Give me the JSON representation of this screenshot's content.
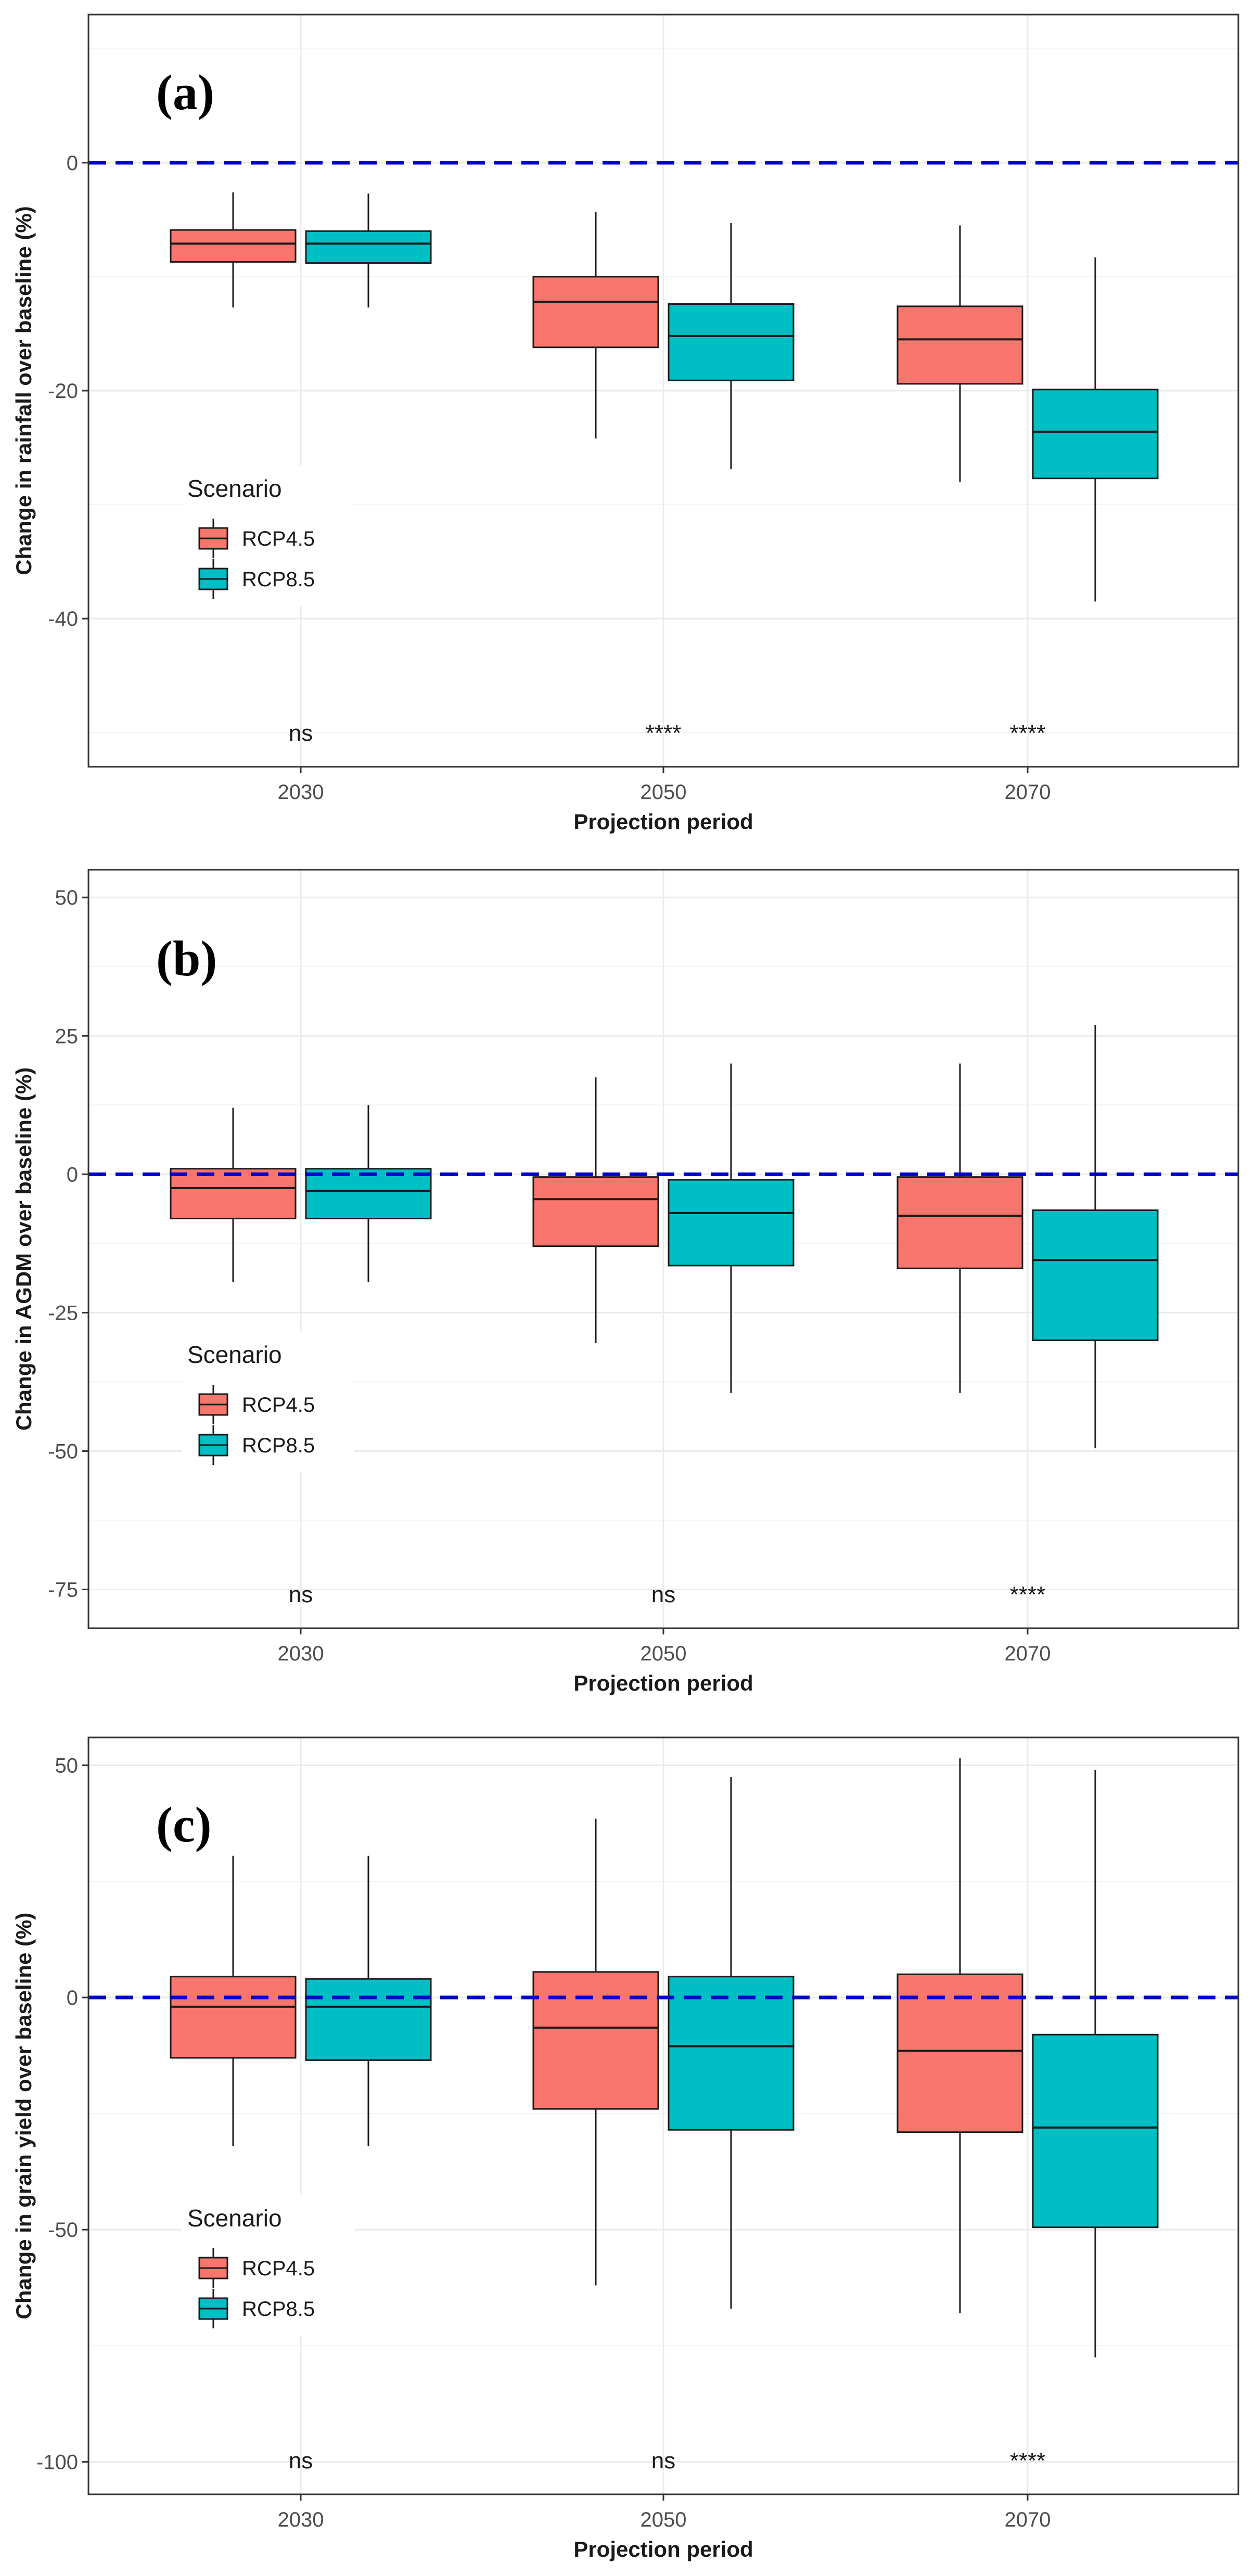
{
  "chart_data": [
    {
      "type": "box",
      "panel_label": "(a)",
      "xlabel": "Projection period",
      "ylabel": "Change in rainfall over baseline (%)",
      "categories": [
        "2030",
        "2050",
        "2070"
      ],
      "ylim": [
        -53,
        13
      ],
      "yticks": [
        0,
        -20,
        -40
      ],
      "reference_line": 0,
      "legend": {
        "title": "Scenario",
        "entries": [
          "RCP4.5",
          "RCP8.5"
        ],
        "position": "left"
      },
      "series": [
        {
          "name": "RCP4.5",
          "color": "#F8766D",
          "boxes": [
            {
              "min": -12.7,
              "q1": -8.7,
              "median": -7.1,
              "q3": -5.9,
              "max": -2.6
            },
            {
              "min": -24.2,
              "q1": -16.2,
              "median": -12.2,
              "q3": -10.0,
              "max": -4.3
            },
            {
              "min": -28.0,
              "q1": -19.4,
              "median": -15.5,
              "q3": -12.6,
              "max": -5.5
            }
          ]
        },
        {
          "name": "RCP8.5",
          "color": "#00BFC4",
          "boxes": [
            {
              "min": -12.7,
              "q1": -8.8,
              "median": -7.1,
              "q3": -6.0,
              "max": -2.7
            },
            {
              "min": -26.9,
              "q1": -19.1,
              "median": -15.2,
              "q3": -12.4,
              "max": -5.3
            },
            {
              "min": -38.5,
              "q1": -27.7,
              "median": -23.6,
              "q3": -19.9,
              "max": -8.3
            }
          ]
        }
      ],
      "significance": [
        "ns",
        "****",
        "****"
      ]
    },
    {
      "type": "box",
      "panel_label": "(b)",
      "xlabel": "Projection period",
      "ylabel": "Change in AGDM over baseline (%)",
      "categories": [
        "2030",
        "2050",
        "2070"
      ],
      "ylim": [
        -82,
        55
      ],
      "yticks": [
        50,
        25,
        0,
        -25,
        -50,
        -75
      ],
      "reference_line": 0,
      "legend": {
        "title": "Scenario",
        "entries": [
          "RCP4.5",
          "RCP8.5"
        ],
        "position": "left"
      },
      "series": [
        {
          "name": "RCP4.5",
          "color": "#F8766D",
          "boxes": [
            {
              "min": -19.5,
              "q1": -8.0,
              "median": -2.5,
              "q3": 1.0,
              "max": 12.0
            },
            {
              "min": -30.5,
              "q1": -13.0,
              "median": -4.5,
              "q3": -0.5,
              "max": 17.5
            },
            {
              "min": -39.5,
              "q1": -17.0,
              "median": -7.5,
              "q3": -0.5,
              "max": 20.0
            }
          ]
        },
        {
          "name": "RCP8.5",
          "color": "#00BFC4",
          "boxes": [
            {
              "min": -19.5,
              "q1": -8.0,
              "median": -3.0,
              "q3": 1.0,
              "max": 12.5
            },
            {
              "min": -39.5,
              "q1": -16.5,
              "median": -7.0,
              "q3": -1.0,
              "max": 20.0
            },
            {
              "min": -49.5,
              "q1": -30.0,
              "median": -15.5,
              "q3": -6.5,
              "max": 27.0
            }
          ]
        }
      ],
      "significance": [
        "ns",
        "ns",
        "****"
      ]
    },
    {
      "type": "box",
      "panel_label": "(c)",
      "xlabel": "Projection period",
      "ylabel": "Change in grain yield over baseline (%)",
      "categories": [
        "2030",
        "2050",
        "2070"
      ],
      "ylim": [
        -107,
        56
      ],
      "yticks": [
        50,
        0,
        -50,
        -100
      ],
      "reference_line": 0,
      "legend": {
        "title": "Scenario",
        "entries": [
          "RCP4.5",
          "RCP8.5"
        ],
        "position": "left"
      },
      "series": [
        {
          "name": "RCP4.5",
          "color": "#F8766D",
          "boxes": [
            {
              "min": -32.0,
              "q1": -13.0,
              "median": -2.0,
              "q3": 4.5,
              "max": 30.5
            },
            {
              "min": -62.0,
              "q1": -24.0,
              "median": -6.5,
              "q3": 5.5,
              "max": 38.5
            },
            {
              "min": -68.0,
              "q1": -29.0,
              "median": -11.5,
              "q3": 5.0,
              "max": 51.5
            }
          ]
        },
        {
          "name": "RCP8.5",
          "color": "#00BFC4",
          "boxes": [
            {
              "min": -32.0,
              "q1": -13.5,
              "median": -2.0,
              "q3": 4.0,
              "max": 30.5
            },
            {
              "min": -67.0,
              "q1": -28.5,
              "median": -10.5,
              "q3": 4.5,
              "max": 47.5
            },
            {
              "min": -77.5,
              "q1": -49.5,
              "median": -28.0,
              "q3": -8.0,
              "max": 49.0
            }
          ]
        }
      ],
      "significance": [
        "ns",
        "ns",
        "****"
      ]
    }
  ]
}
